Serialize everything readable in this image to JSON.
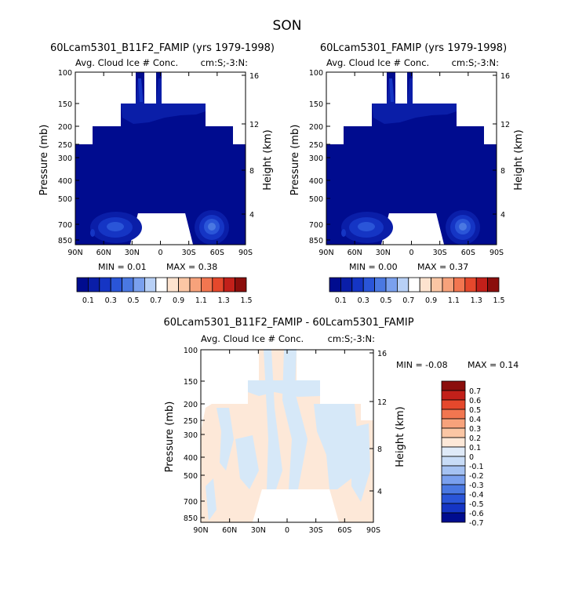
{
  "figure": {
    "season": "SON"
  },
  "colors": {
    "dark_blue": "#000c8f",
    "levels_abs": [
      "#000c8f",
      "#0a1ea8",
      "#1535c4",
      "#2a55d8",
      "#4a78e2",
      "#7aa0ee",
      "#b8d0f6",
      "#ffffff",
      "#fde3cf",
      "#fbc6a4",
      "#f7a27b",
      "#f27650",
      "#e5482c",
      "#c2201a",
      "#8b0e0c"
    ],
    "levels_diff": [
      "#000c8f",
      "#1535c4",
      "#2a55d8",
      "#4a78e2",
      "#7aa0ee",
      "#a5c2f2",
      "#c8dcf7",
      "#dfeaf8",
      "#fde8d8",
      "#fbc6a4",
      "#f7a27b",
      "#f27650",
      "#e5482c",
      "#c2201a",
      "#8b0e0c"
    ],
    "diff_fill_blue": "#d6e8f8",
    "diff_fill_orange": "#fde8d8"
  },
  "chart_data": [
    {
      "type": "heatmap",
      "title": "60Lcam5301_B11F2_FAMIP (yrs 1979-1998)",
      "left_string": "Avg. Cloud Ice # Conc.",
      "right_string": "cm:S;-3:N:",
      "xlabel": "",
      "ylabel": "Pressure (mb)",
      "ylabel_right": "Height (km)",
      "x_ticks": [
        "90N",
        "60N",
        "30N",
        "0",
        "30S",
        "60S",
        "90S"
      ],
      "y_ticks": [
        "100",
        "150",
        "200",
        "250",
        "300",
        "400",
        "500",
        "700",
        "850"
      ],
      "y_right_ticks": [
        "16",
        "12",
        "8",
        "4"
      ],
      "min_label": "MIN = 0.01",
      "max_label": "MAX = 0.38",
      "colorbar_labels": [
        "0.1",
        "0.3",
        "0.5",
        "0.7",
        "0.9",
        "1.1",
        "1.3",
        "1.5"
      ]
    },
    {
      "type": "heatmap",
      "title": "60Lcam5301_FAMIP (yrs 1979-1998)",
      "left_string": "Avg. Cloud Ice # Conc.",
      "right_string": "cm:S;-3:N:",
      "xlabel": "",
      "ylabel": "Pressure (mb)",
      "ylabel_right": "Height (km)",
      "x_ticks": [
        "90N",
        "60N",
        "30N",
        "0",
        "30S",
        "60S",
        "90S"
      ],
      "y_ticks": [
        "100",
        "150",
        "200",
        "250",
        "300",
        "400",
        "500",
        "700",
        "850"
      ],
      "y_right_ticks": [
        "16",
        "12",
        "8",
        "4"
      ],
      "min_label": "MIN = 0.00",
      "max_label": "MAX = 0.37",
      "colorbar_labels": [
        "0.1",
        "0.3",
        "0.5",
        "0.7",
        "0.9",
        "1.1",
        "1.3",
        "1.5"
      ]
    },
    {
      "type": "heatmap",
      "title": "60Lcam5301_B11F2_FAMIP - 60Lcam5301_FAMIP",
      "left_string": "Avg. Cloud Ice # Conc.",
      "right_string": "cm:S;-3:N:",
      "xlabel": "",
      "ylabel": "Pressure (mb)",
      "ylabel_right": "Height (km)",
      "x_ticks": [
        "90N",
        "60N",
        "30N",
        "0",
        "30S",
        "60S",
        "90S"
      ],
      "y_ticks": [
        "100",
        "150",
        "200",
        "250",
        "300",
        "400",
        "500",
        "700",
        "850"
      ],
      "y_right_ticks": [
        "16",
        "12",
        "8",
        "4"
      ],
      "min_label": "MIN = -0.08",
      "max_label": "MAX = 0.14",
      "colorbar_labels": [
        "0.7",
        "0.6",
        "0.5",
        "0.4",
        "0.3",
        "0.2",
        "0.1",
        "0",
        "-0.1",
        "-0.2",
        "-0.3",
        "-0.4",
        "-0.5",
        "-0.6",
        "-0.7"
      ]
    }
  ]
}
